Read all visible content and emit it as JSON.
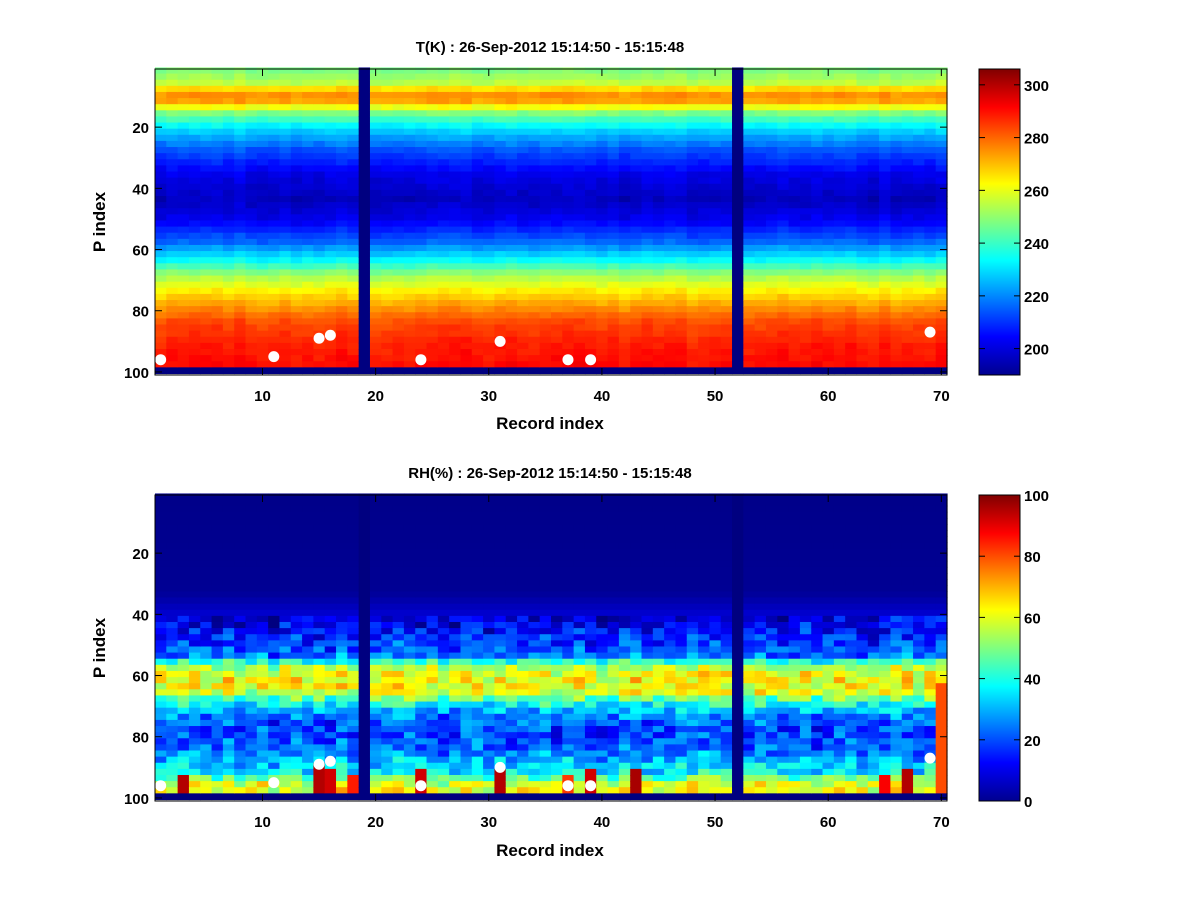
{
  "colors": {
    "background": "#ffffff",
    "axis": "#000000",
    "marker": "#ffffff",
    "colormap": "jet"
  },
  "chart_data": [
    {
      "type": "heatmap",
      "title": "T(K) : 26-Sep-2012 15:14:50 - 15:15:48",
      "xlabel": "Record index",
      "ylabel": "P index",
      "xlim": [
        0.5,
        70.5
      ],
      "ylim": [
        1,
        101
      ],
      "y_reversed": true,
      "xticks": [
        "10",
        "20",
        "30",
        "40",
        "50",
        "60",
        "70"
      ],
      "yticks": [
        "20",
        "40",
        "60",
        "80",
        "100"
      ],
      "colorbar": {
        "min": 190,
        "max": 306,
        "ticks": [
          "200",
          "220",
          "240",
          "260",
          "280",
          "300"
        ]
      },
      "profile": [
        [
          1,
          248
        ],
        [
          5,
          255
        ],
        [
          8,
          272
        ],
        [
          10,
          278
        ],
        [
          12,
          268
        ],
        [
          15,
          248
        ],
        [
          20,
          230
        ],
        [
          27,
          214
        ],
        [
          35,
          202
        ],
        [
          43,
          197
        ],
        [
          50,
          203
        ],
        [
          57,
          216
        ],
        [
          63,
          234
        ],
        [
          68,
          252
        ],
        [
          73,
          264
        ],
        [
          78,
          274
        ],
        [
          83,
          283
        ],
        [
          90,
          288
        ],
        [
          98,
          291
        ]
      ],
      "missing_records": [
        19,
        52
      ],
      "missing_levels_from": 99,
      "fill_value": 190,
      "markers": [
        {
          "record": 1,
          "level": 96
        },
        {
          "record": 11,
          "level": 95
        },
        {
          "record": 15,
          "level": 89
        },
        {
          "record": 16,
          "level": 88
        },
        {
          "record": 24,
          "level": 96
        },
        {
          "record": 31,
          "level": 90
        },
        {
          "record": 37,
          "level": 96
        },
        {
          "record": 39,
          "level": 96
        },
        {
          "record": 69,
          "level": 87
        }
      ]
    },
    {
      "type": "heatmap",
      "title": "RH(%) : 26-Sep-2012 15:14:50 - 15:15:48",
      "xlabel": "Record index",
      "ylabel": "P index",
      "xlim": [
        0.5,
        70.5
      ],
      "ylim": [
        1,
        101
      ],
      "y_reversed": true,
      "xticks": [
        "10",
        "20",
        "30",
        "40",
        "50",
        "60",
        "70"
      ],
      "yticks": [
        "20",
        "40",
        "60",
        "80",
        "100"
      ],
      "colorbar": {
        "min": 0,
        "max": 100,
        "ticks": [
          "0",
          "20",
          "40",
          "60",
          "80",
          "100"
        ]
      },
      "profile": [
        [
          1,
          1
        ],
        [
          32,
          2
        ],
        [
          36,
          5
        ],
        [
          42,
          10
        ],
        [
          48,
          16
        ],
        [
          53,
          24
        ],
        [
          56,
          50
        ],
        [
          58,
          60
        ],
        [
          62,
          62
        ],
        [
          65,
          58
        ],
        [
          68,
          42
        ],
        [
          71,
          30
        ],
        [
          74,
          22
        ],
        [
          78,
          18
        ],
        [
          83,
          22
        ],
        [
          87,
          30
        ],
        [
          91,
          36
        ],
        [
          95,
          58
        ],
        [
          98,
          62
        ]
      ],
      "missing_records": [
        19,
        52
      ],
      "missing_levels_from": 99,
      "fill_value": 0,
      "hot_cells": [
        {
          "record": 3,
          "levels": [
            92,
            98
          ],
          "value": 95
        },
        {
          "record": 15,
          "levels": [
            89,
            98
          ],
          "value": 95
        },
        {
          "record": 16,
          "levels": [
            91,
            98
          ],
          "value": 92
        },
        {
          "record": 18,
          "levels": [
            93,
            98
          ],
          "value": 85
        },
        {
          "record": 24,
          "levels": [
            91,
            98
          ],
          "value": 92
        },
        {
          "record": 31,
          "levels": [
            90,
            98
          ],
          "value": 95
        },
        {
          "record": 37,
          "levels": [
            93,
            98
          ],
          "value": 82
        },
        {
          "record": 39,
          "levels": [
            91,
            98
          ],
          "value": 92
        },
        {
          "record": 43,
          "levels": [
            91,
            98
          ],
          "value": 96
        },
        {
          "record": 65,
          "levels": [
            93,
            98
          ],
          "value": 88
        },
        {
          "record": 67,
          "levels": [
            91,
            98
          ],
          "value": 95
        },
        {
          "record": 70,
          "levels": [
            63,
            98
          ],
          "value": 80
        }
      ],
      "markers": [
        {
          "record": 1,
          "level": 96
        },
        {
          "record": 11,
          "level": 95
        },
        {
          "record": 15,
          "level": 89
        },
        {
          "record": 16,
          "level": 88
        },
        {
          "record": 24,
          "level": 96
        },
        {
          "record": 31,
          "level": 90
        },
        {
          "record": 37,
          "level": 96
        },
        {
          "record": 39,
          "level": 96
        },
        {
          "record": 69,
          "level": 87
        }
      ]
    }
  ]
}
